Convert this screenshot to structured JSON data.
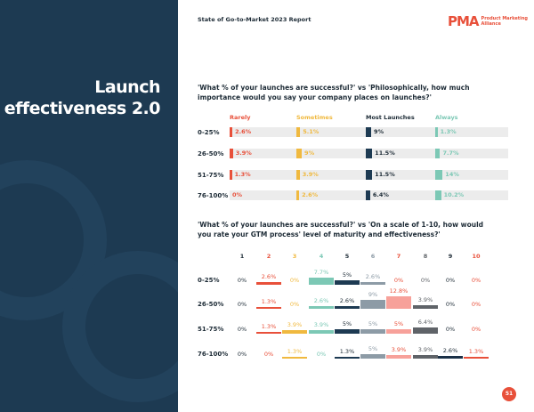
{
  "header": {
    "report_title": "State of Go-to-Market 2023 Report",
    "logo_mark": "PMA",
    "logo_text_1": "Product Marketing",
    "logo_text_2": "Alliance"
  },
  "sidebar": {
    "title_line1": "Launch",
    "title_line2": "effectiveness 2.0"
  },
  "chart1": {
    "question": "'What % of your launches are successful?' vs 'Philosophically, how much importance would you say your company places on launches?'",
    "type": "bar",
    "columns": [
      {
        "name": "Rarely",
        "color": "#e8503a",
        "text": "#e8503a"
      },
      {
        "name": "Sometimes",
        "color": "#f0b93f",
        "text": "#f0b93f"
      },
      {
        "name": "Most Launches",
        "color": "#1d3a52",
        "text": "#1d2b36"
      },
      {
        "name": "Always",
        "color": "#7cc8b5",
        "text": "#7cc8b5"
      }
    ],
    "rows": [
      "0-25%",
      "26-50%",
      "51-75%",
      "76-100%"
    ],
    "values": [
      [
        2.6,
        5.1,
        9,
        1.3
      ],
      [
        3.9,
        9,
        11.5,
        7.7
      ],
      [
        1.3,
        3.9,
        11.5,
        14
      ],
      [
        0,
        2.6,
        6.4,
        10.2
      ]
    ],
    "labels": [
      [
        "2.6%",
        "5.1%",
        "9%",
        "1.3%"
      ],
      [
        "3.9%",
        "9%",
        "11.5%",
        "7.7%"
      ],
      [
        "1.3%",
        "3.9%",
        "11.5%",
        "14%"
      ],
      [
        "0%",
        "2.6%",
        "6.4%",
        "10.2%"
      ]
    ]
  },
  "chart2": {
    "question": "'What % of your launches are successful?' vs 'On a scale of 1-10, how would you rate your GTM process' level of maturity and effectiveness?'",
    "type": "bar",
    "columns": [
      "1",
      "2",
      "3",
      "4",
      "5",
      "6",
      "7",
      "8",
      "9",
      "10"
    ],
    "colors": [
      "#1d2b36",
      "#e8503a",
      "#f0b93f",
      "#7cc8b5",
      "#1d3a52",
      "#8d9ba6",
      "#f7a19a",
      "#5f6368",
      "#1b3148",
      "#e8503a"
    ],
    "text_colors": [
      "#1d2b36",
      "#e8503a",
      "#f0b93f",
      "#7cc8b5",
      "#1d2b36",
      "#8d9ba6",
      "#e8503a",
      "#5f6368",
      "#1d2b36",
      "#e8503a"
    ],
    "rows": [
      "0-25%",
      "26-50%",
      "51-75%",
      "76-100%"
    ],
    "values": [
      [
        0,
        2.6,
        0,
        7.7,
        5,
        2.6,
        0,
        0,
        0,
        0
      ],
      [
        0,
        1.3,
        0,
        2.6,
        2.6,
        9,
        12.8,
        3.9,
        0,
        0
      ],
      [
        0,
        1.3,
        3.9,
        3.9,
        5,
        5,
        5,
        6.4,
        0,
        0
      ],
      [
        0,
        0,
        1.3,
        0,
        1.3,
        5,
        3.9,
        3.9,
        2.6,
        1.3
      ]
    ],
    "labels": [
      [
        "0%",
        "2.6%",
        "0%",
        "7.7%",
        "5%",
        "2.6%",
        "0%",
        "0%",
        "0%",
        "0%"
      ],
      [
        "0%",
        "1.3%",
        "0%",
        "2.6%",
        "2.6%",
        "9%",
        "12.8%",
        "3.9%",
        "0%",
        "0%"
      ],
      [
        "0%",
        "1.3%",
        "3.9%",
        "3.9%",
        "5%",
        "5%",
        "5%",
        "6.4%",
        "0%",
        "0%"
      ],
      [
        "0%",
        "0%",
        "1.3%",
        "0%",
        "1.3%",
        "5%",
        "3.9%",
        "3.9%",
        "2.6%",
        "1.3%"
      ]
    ]
  },
  "page_number": "51"
}
